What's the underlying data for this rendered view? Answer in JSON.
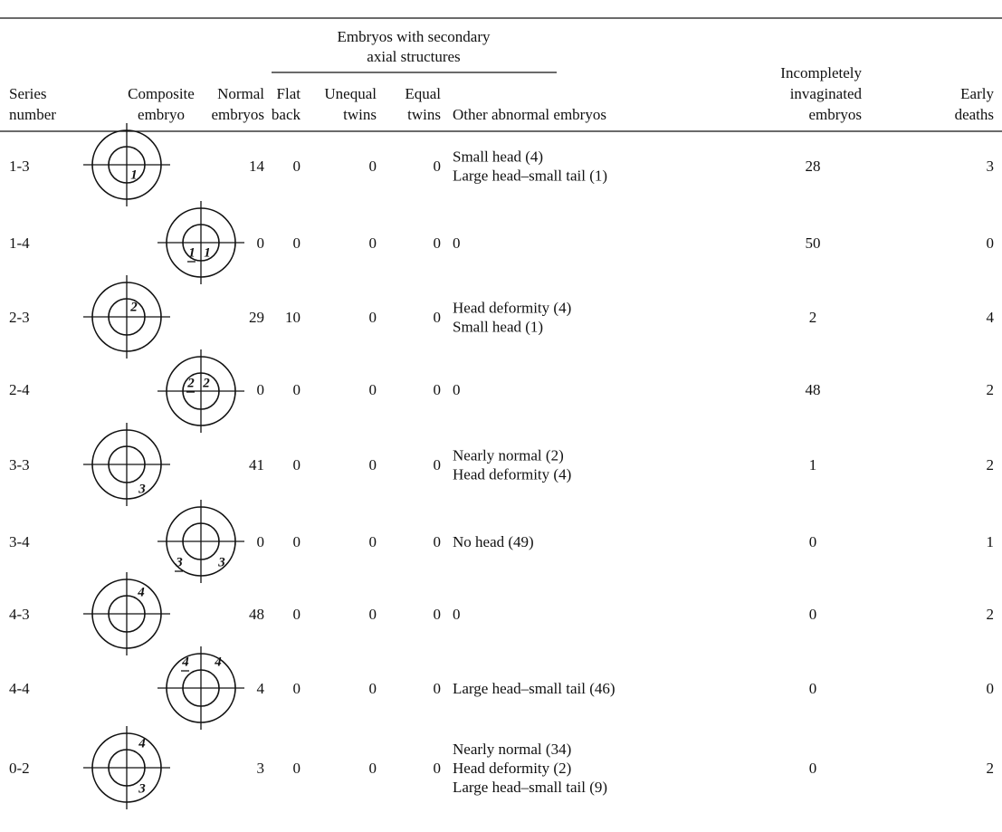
{
  "table": {
    "group_header": [
      "Embryos with secondary",
      "axial structures"
    ],
    "columns": [
      [
        "Series",
        "number"
      ],
      [
        "Composite",
        "embryo"
      ],
      [
        "Normal",
        "embryos"
      ],
      [
        "Flat",
        "back"
      ],
      [
        "Unequal",
        "twins"
      ],
      [
        "Equal",
        "twins"
      ],
      [
        "Other abnormal embryos"
      ],
      [
        "Incompletely",
        "invaginated",
        "embryos"
      ],
      [
        "Early",
        "deaths"
      ]
    ],
    "rows": [
      {
        "series": "1-3",
        "embryo": [
          {
            "text": "1",
            "underline": false
          }
        ],
        "normal": 14,
        "flat_back": 0,
        "unequal_twins": 0,
        "equal_twins": 0,
        "other": [
          "Small head (4)",
          "Large head–small tail (1)"
        ],
        "incompletely_invaginated": 28,
        "early_deaths": 3
      },
      {
        "series": "1-4",
        "embryo": [
          {
            "text": "1",
            "underline": true
          },
          {
            "text": "1",
            "underline": false
          }
        ],
        "normal": 0,
        "flat_back": 0,
        "unequal_twins": 0,
        "equal_twins": 0,
        "other": [
          "0"
        ],
        "incompletely_invaginated": 50,
        "early_deaths": 0
      },
      {
        "series": "2-3",
        "embryo": [
          {
            "text": "2",
            "underline": false
          }
        ],
        "normal": 29,
        "flat_back": 10,
        "unequal_twins": 0,
        "equal_twins": 0,
        "other": [
          "Head deformity (4)",
          "Small head (1)"
        ],
        "incompletely_invaginated": 2,
        "early_deaths": 4
      },
      {
        "series": "2-4",
        "embryo": [
          {
            "text": "2",
            "underline": true
          },
          {
            "text": "2",
            "underline": false
          }
        ],
        "normal": 0,
        "flat_back": 0,
        "unequal_twins": 0,
        "equal_twins": 0,
        "other": [
          "0"
        ],
        "incompletely_invaginated": 48,
        "early_deaths": 2
      },
      {
        "series": "3-3",
        "embryo": [
          {
            "text": "3",
            "underline": false
          }
        ],
        "normal": 41,
        "flat_back": 0,
        "unequal_twins": 0,
        "equal_twins": 0,
        "other": [
          "Nearly normal (2)",
          "Head deformity (4)"
        ],
        "incompletely_invaginated": 1,
        "early_deaths": 2
      },
      {
        "series": "3-4",
        "embryo": [
          {
            "text": "3",
            "underline": true
          },
          {
            "text": "3",
            "underline": false
          }
        ],
        "normal": 0,
        "flat_back": 0,
        "unequal_twins": 0,
        "equal_twins": 0,
        "other": [
          "No head (49)"
        ],
        "incompletely_invaginated": 0,
        "early_deaths": 1
      },
      {
        "series": "4-3",
        "embryo": [
          {
            "text": "4",
            "underline": false
          }
        ],
        "normal": 48,
        "flat_back": 0,
        "unequal_twins": 0,
        "equal_twins": 0,
        "other": [
          "0"
        ],
        "incompletely_invaginated": 0,
        "early_deaths": 2
      },
      {
        "series": "4-4",
        "embryo": [
          {
            "text": "4",
            "underline": true
          },
          {
            "text": "4",
            "underline": false
          }
        ],
        "normal": 4,
        "flat_back": 0,
        "unequal_twins": 0,
        "equal_twins": 0,
        "other": [
          "Large head–small tail (46)"
        ],
        "incompletely_invaginated": 0,
        "early_deaths": 0
      },
      {
        "series": "0-2",
        "embryo": [
          {
            "text": "4",
            "underline": false
          },
          {
            "text": "3",
            "underline": false
          }
        ],
        "normal": 3,
        "flat_back": 0,
        "unequal_twins": 0,
        "equal_twins": 0,
        "other": [
          "Nearly normal (34)",
          "Head deformity (2)",
          "Large head–small tail (9)"
        ],
        "incompletely_invaginated": 0,
        "early_deaths": 2
      }
    ]
  }
}
